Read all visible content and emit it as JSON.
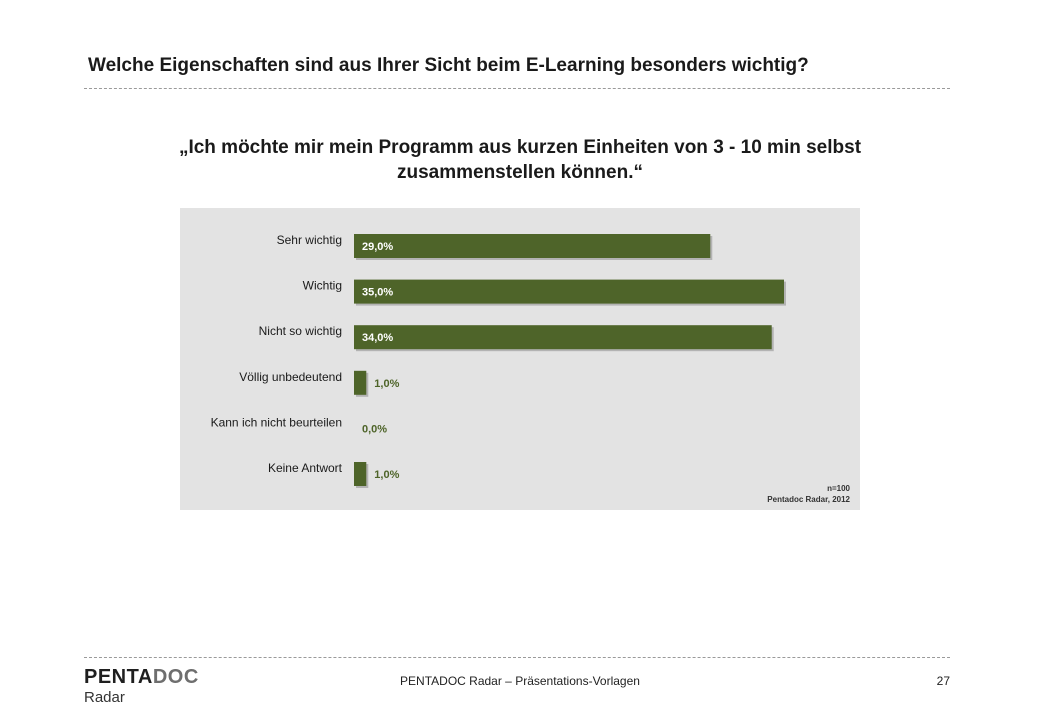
{
  "header": {
    "title": "Welche Eigenschaften sind aus Ihrer Sicht beim E-Learning besonders wichtig?",
    "quote_line1": "„Ich möchte mir mein Programm aus kurzen Einheiten von 3 - 10 min selbst",
    "quote_line2": "zusammenstellen können.“"
  },
  "chart_data": {
    "type": "bar",
    "orientation": "horizontal",
    "categories": [
      "Sehr wichtig",
      "Wichtig",
      "Nicht so wichtig",
      "Völlig unbedeutend",
      "Kann ich nicht beurteilen",
      "Keine Antwort"
    ],
    "values": [
      29.0,
      35.0,
      34.0,
      1.0,
      0.0,
      1.0
    ],
    "value_labels": [
      "29,0%",
      "35,0%",
      "34,0%",
      "1,0%",
      "0,0%",
      "1,0%"
    ],
    "xlim": [
      0,
      35
    ],
    "grid": false,
    "colors": {
      "bar": "#4e6429",
      "label_inside": "#ffffff",
      "label_outside": "#4e6429",
      "background": "#e3e3e3"
    },
    "notes": [
      "n=100",
      "Pentadoc Radar, 2012"
    ]
  },
  "footer": {
    "logo_part1": "PENTA",
    "logo_part2": "DOC",
    "logo_sub": "Radar",
    "center_text": "PENTADOC Radar – Präsentations-Vorlagen",
    "page_number": "27"
  }
}
